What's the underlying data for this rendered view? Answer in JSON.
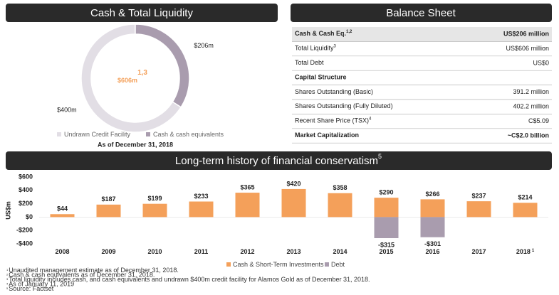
{
  "chart_data": [
    {
      "type": "donut",
      "title": "Cash & Total Liquidity",
      "center_label": "$606m",
      "center_label_note": "1,3",
      "categories": [
        "Undrawn Credit Facility",
        "Cash & cash equivalents"
      ],
      "values": [
        400,
        206
      ],
      "value_labels": [
        "$400m",
        "$206m"
      ],
      "colors": [
        "#e2dee5",
        "#a99cae"
      ],
      "note": "As of December 31, 2018"
    },
    {
      "type": "bar",
      "title": "Long-term history of financial conservatism",
      "title_note": "5",
      "y_label": "US$m",
      "categories": [
        "2008",
        "2009",
        "2010",
        "2011",
        "2012",
        "2013",
        "2014",
        "2015",
        "2016",
        "2017",
        "2018"
      ],
      "category_note": "1",
      "series": [
        {
          "name": "Cash & Short-Term Investments",
          "color": "#f4a05a",
          "values": [
            44,
            187,
            199,
            233,
            365,
            420,
            358,
            290,
            266,
            237,
            214
          ],
          "value_labels": [
            "$44",
            "$187",
            "$199",
            "$233",
            "$365",
            "$420",
            "$358",
            "$290",
            "$266",
            "$237",
            "$214"
          ]
        },
        {
          "name": "Debt",
          "color": "#a99cae",
          "values": [
            null,
            null,
            null,
            null,
            null,
            null,
            null,
            -315,
            -301,
            null,
            null
          ],
          "value_labels": [
            null,
            null,
            null,
            null,
            null,
            null,
            null,
            "-$315",
            "-$301",
            null,
            null
          ]
        }
      ],
      "ylim": [
        -400,
        600
      ],
      "yticks": [
        {
          "value": -400,
          "label": "-$400"
        },
        {
          "value": -200,
          "label": "-$200"
        },
        {
          "value": 0,
          "label": "$0"
        },
        {
          "value": 200,
          "label": "$200"
        },
        {
          "value": 400,
          "label": "$400"
        },
        {
          "value": 600,
          "label": "$600"
        }
      ]
    }
  ],
  "balance_sheet": {
    "title": "Balance Sheet",
    "rows": [
      {
        "label": "Cash & Cash Eq.",
        "note": "1,2",
        "value": "US$206 million",
        "bold": true
      },
      {
        "label": "Total Liquidity",
        "note": "3",
        "value": "US$606 million"
      },
      {
        "label": "Total Debt",
        "value": "US$0"
      },
      {
        "label": "Capital Structure",
        "bold": true
      },
      {
        "label": "Shares Outstanding (Basic)",
        "value": "391.2 million"
      },
      {
        "label": "Shares Outstanding (Fully Diluted)",
        "value": "402.2 million"
      },
      {
        "label": "Recent Share Price (TSX)",
        "note": "4",
        "value": "C$5.09"
      },
      {
        "label": "Market Capitalization",
        "value": "~C$2.0 billion",
        "bold": true
      }
    ]
  },
  "footnotes": [
    {
      "mark": "1",
      "text": "Unaudited management estimate as of December 31, 2018."
    },
    {
      "mark": "2",
      "text": "Cash & cash equivalents as of December 31, 2018."
    },
    {
      "mark": "3",
      "text": "Total liquidity includes cash, and cash equivalents and undrawn $400m credit facility for Alamos Gold as of December 31, 2018."
    },
    {
      "mark": "4",
      "text": "As of January 11, 2019"
    },
    {
      "mark": "5",
      "text": "Source: Factset"
    }
  ]
}
